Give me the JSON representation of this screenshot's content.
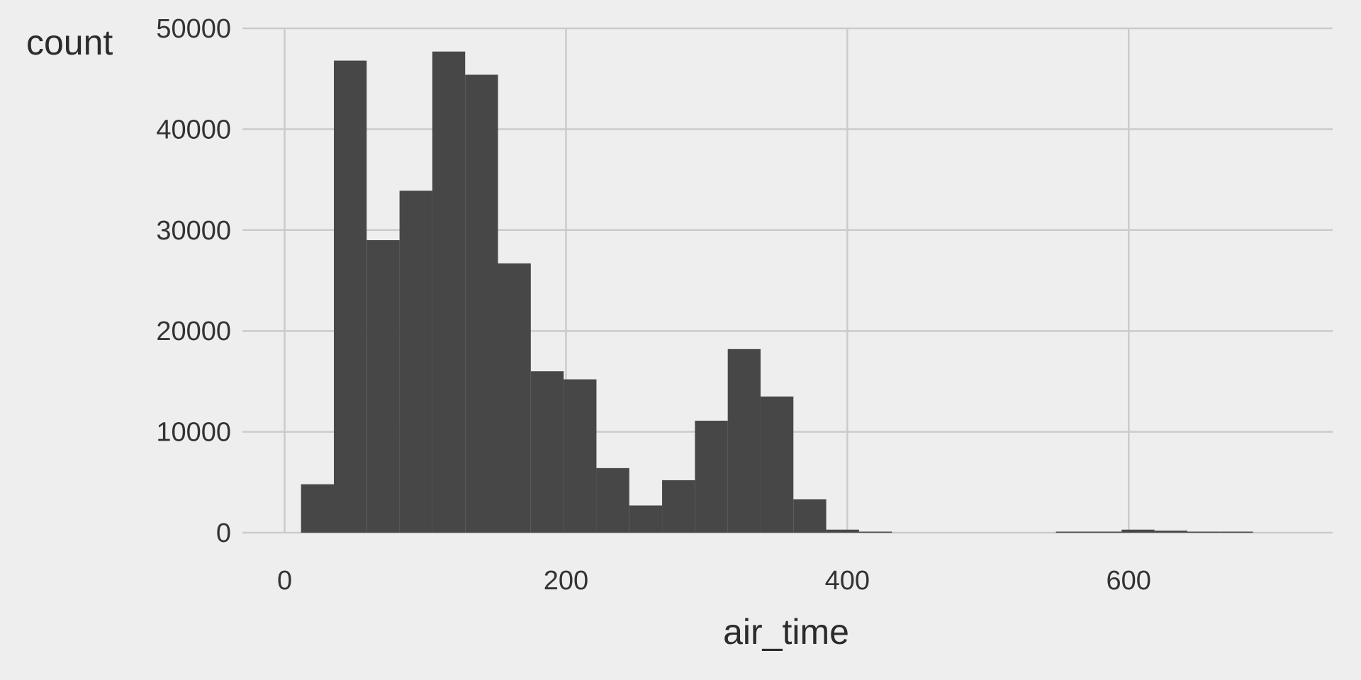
{
  "chart_data": {
    "type": "bar",
    "subtype": "histogram",
    "xlabel": "air_time",
    "ylabel": "count",
    "xlim": [
      -30,
      745
    ],
    "ylim": [
      0,
      50000
    ],
    "x_ticks": [
      0,
      200,
      400,
      600
    ],
    "y_ticks": [
      0,
      10000,
      20000,
      30000,
      40000,
      50000
    ],
    "grid": true,
    "colors": {
      "bar": "#474747",
      "background": "#eeeeee",
      "grid": "#cbcbcb"
    },
    "bin_width": 23.33,
    "bins": [
      {
        "x0": 11.67,
        "x1": 35.0,
        "count": 4800
      },
      {
        "x0": 35.0,
        "x1": 58.33,
        "count": 46800
      },
      {
        "x0": 58.33,
        "x1": 81.67,
        "count": 29000
      },
      {
        "x0": 81.67,
        "x1": 105.0,
        "count": 33900
      },
      {
        "x0": 105.0,
        "x1": 128.33,
        "count": 47700
      },
      {
        "x0": 128.33,
        "x1": 151.67,
        "count": 45400
      },
      {
        "x0": 151.67,
        "x1": 175.0,
        "count": 26700
      },
      {
        "x0": 175.0,
        "x1": 198.33,
        "count": 16000
      },
      {
        "x0": 198.33,
        "x1": 221.67,
        "count": 15200
      },
      {
        "x0": 221.67,
        "x1": 245.0,
        "count": 6400
      },
      {
        "x0": 245.0,
        "x1": 268.33,
        "count": 2700
      },
      {
        "x0": 268.33,
        "x1": 291.67,
        "count": 5200
      },
      {
        "x0": 291.67,
        "x1": 315.0,
        "count": 11100
      },
      {
        "x0": 315.0,
        "x1": 338.33,
        "count": 18200
      },
      {
        "x0": 338.33,
        "x1": 361.67,
        "count": 13500
      },
      {
        "x0": 361.67,
        "x1": 385.0,
        "count": 3300
      },
      {
        "x0": 385.0,
        "x1": 408.33,
        "count": 300
      },
      {
        "x0": 408.33,
        "x1": 431.67,
        "count": 50
      },
      {
        "x0": 431.67,
        "x1": 455.0,
        "count": 0
      },
      {
        "x0": 455.0,
        "x1": 478.33,
        "count": 0
      },
      {
        "x0": 478.33,
        "x1": 501.67,
        "count": 0
      },
      {
        "x0": 501.67,
        "x1": 525.0,
        "count": 0
      },
      {
        "x0": 525.0,
        "x1": 548.33,
        "count": 0
      },
      {
        "x0": 548.33,
        "x1": 571.67,
        "count": 30
      },
      {
        "x0": 571.67,
        "x1": 595.0,
        "count": 100
      },
      {
        "x0": 595.0,
        "x1": 618.33,
        "count": 300
      },
      {
        "x0": 618.33,
        "x1": 641.67,
        "count": 200
      },
      {
        "x0": 641.67,
        "x1": 665.0,
        "count": 80
      },
      {
        "x0": 665.0,
        "x1": 688.33,
        "count": 30
      }
    ]
  }
}
